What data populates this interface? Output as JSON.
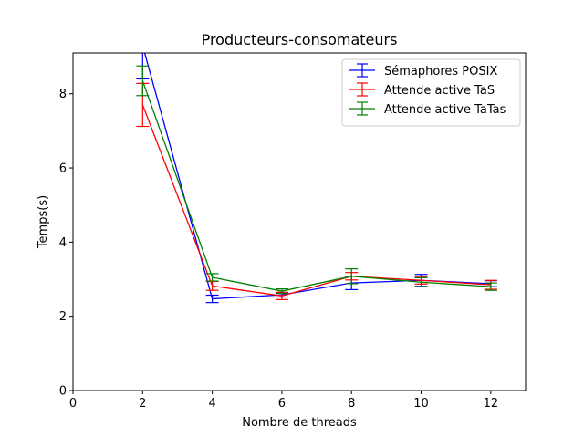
{
  "chart_data": {
    "type": "line",
    "title": "Producteurs-consomateurs",
    "xlabel": "Nombre de threads",
    "ylabel": "Temps(s)",
    "xlim": [
      0,
      13
    ],
    "ylim": [
      0,
      9.1
    ],
    "xticks": [
      0,
      2,
      4,
      6,
      8,
      10,
      12
    ],
    "yticks": [
      0,
      2,
      4,
      6,
      8
    ],
    "grid": false,
    "legend_position": "top-right",
    "x": [
      2,
      4,
      6,
      8,
      10,
      12
    ],
    "series": [
      {
        "name": "Sémaphores POSIX",
        "color": "#0000ff",
        "values": [
          9.3,
          2.47,
          2.58,
          2.9,
          2.97,
          2.88
        ],
        "errors": [
          0.9,
          0.1,
          0.06,
          0.18,
          0.16,
          0.08
        ]
      },
      {
        "name": "Attende active TaS",
        "color": "#ff0000",
        "values": [
          7.7,
          2.82,
          2.55,
          3.08,
          2.97,
          2.85
        ],
        "errors": [
          0.58,
          0.12,
          0.1,
          0.1,
          0.1,
          0.12
        ]
      },
      {
        "name": "Attende active TaTas",
        "color": "#008000",
        "values": [
          8.35,
          3.05,
          2.68,
          3.08,
          2.92,
          2.8
        ],
        "errors": [
          0.4,
          0.1,
          0.06,
          0.2,
          0.12,
          0.1
        ]
      }
    ]
  }
}
